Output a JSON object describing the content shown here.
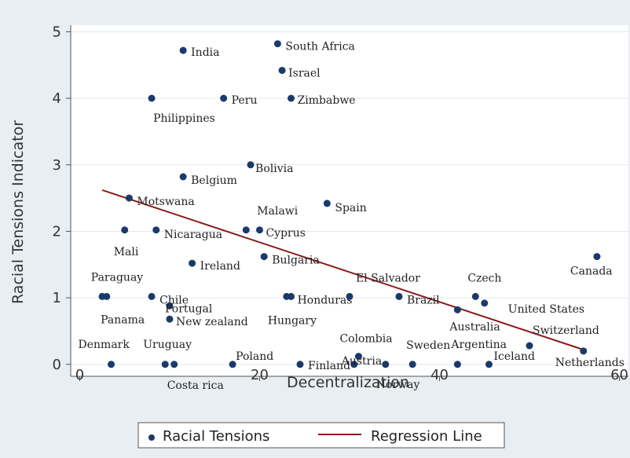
{
  "chart_data": {
    "type": "scatter",
    "title": "",
    "xlabel": "Decentralization",
    "ylabel": "Racial Tensions Indicator",
    "xlim": [
      -1,
      61
    ],
    "ylim": [
      -0.18,
      5.1
    ],
    "x_ticks": [
      0,
      20,
      40,
      60
    ],
    "y_ticks": [
      0,
      1,
      2,
      3,
      4,
      5
    ],
    "grid": "horizontal",
    "legend_position": "bottom",
    "legend": {
      "scatter_label": "Racial Tensions",
      "line_label": "Regression Line"
    },
    "colors": {
      "points": "#1a3a6b",
      "regression": "#8b1a1a",
      "plot_background": "#ffffff",
      "outer_background": "#e8eef2"
    },
    "series": [
      {
        "name": "Racial Tensions",
        "points": [
          {
            "label": "India",
            "x": 11.5,
            "y": 4.72
          },
          {
            "label": "South Africa",
            "x": 22.0,
            "y": 4.82
          },
          {
            "label": "Israel",
            "x": 22.5,
            "y": 4.42
          },
          {
            "label": "Peru",
            "x": 16.0,
            "y": 4.0
          },
          {
            "label": "Zimbabwe",
            "x": 23.5,
            "y": 4.0
          },
          {
            "label": "Philippines",
            "x": 8.0,
            "y": 4.0
          },
          {
            "label": "Bolivia",
            "x": 19.0,
            "y": 3.0
          },
          {
            "label": "Belgium",
            "x": 11.5,
            "y": 2.82
          },
          {
            "label": "Motswana",
            "x": 5.5,
            "y": 2.5
          },
          {
            "label": "Spain",
            "x": 27.5,
            "y": 2.42
          },
          {
            "label": "Malawi",
            "x": 18.5,
            "y": 2.02
          },
          {
            "label": "Cyprus",
            "x": 20.0,
            "y": 2.02
          },
          {
            "label": "Nicaragua",
            "x": 8.5,
            "y": 2.02
          },
          {
            "label": "Mali",
            "x": 5.0,
            "y": 2.02
          },
          {
            "label": "Bulgaria",
            "x": 20.5,
            "y": 1.62
          },
          {
            "label": "Ireland",
            "x": 12.5,
            "y": 1.52
          },
          {
            "label": "Canada",
            "x": 57.5,
            "y": 1.62
          },
          {
            "label": "Paraguay",
            "x": 3.0,
            "y": 1.02
          },
          {
            "label": "Panama",
            "x": 2.5,
            "y": 1.02
          },
          {
            "label": "Chile",
            "x": 8.0,
            "y": 1.02
          },
          {
            "label": "Portugal",
            "x": 10.0,
            "y": 0.88
          },
          {
            "label": "New zealand",
            "x": 10.0,
            "y": 0.68
          },
          {
            "label": "Honduras",
            "x": 23.5,
            "y": 1.02
          },
          {
            "label": "Hungary",
            "x": 23.0,
            "y": 1.02
          },
          {
            "label": "El Salvador",
            "x": 30.0,
            "y": 1.02
          },
          {
            "label": "Brazil",
            "x": 35.5,
            "y": 1.02
          },
          {
            "label": "Czech",
            "x": 44.0,
            "y": 1.02
          },
          {
            "label": "United States",
            "x": 45.0,
            "y": 0.92
          },
          {
            "label": "Australia",
            "x": 42.0,
            "y": 0.82
          },
          {
            "label": "Switzerland",
            "x": 50.0,
            "y": 0.28
          },
          {
            "label": "Netherlands",
            "x": 56.0,
            "y": 0.2
          },
          {
            "label": "Denmark",
            "x": 3.5,
            "y": 0.0
          },
          {
            "label": "Uruguay",
            "x": 9.5,
            "y": 0.0
          },
          {
            "label": "Costa rica",
            "x": 10.5,
            "y": 0.0
          },
          {
            "label": "Poland",
            "x": 17.0,
            "y": 0.0
          },
          {
            "label": "Finland",
            "x": 24.5,
            "y": 0.0
          },
          {
            "label": "Colombia",
            "x": 31.0,
            "y": 0.12
          },
          {
            "label": "Austria",
            "x": 30.5,
            "y": 0.0
          },
          {
            "label": "Norway",
            "x": 34.0,
            "y": 0.0
          },
          {
            "label": "Sweden",
            "x": 37.0,
            "y": 0.0
          },
          {
            "label": "Argentina",
            "x": 42.0,
            "y": 0.0
          },
          {
            "label": "Iceland",
            "x": 45.5,
            "y": 0.0
          }
        ]
      }
    ],
    "regression_line": {
      "name": "Regression Line",
      "x": [
        2.5,
        56.0
      ],
      "y": [
        2.62,
        0.22
      ]
    }
  }
}
